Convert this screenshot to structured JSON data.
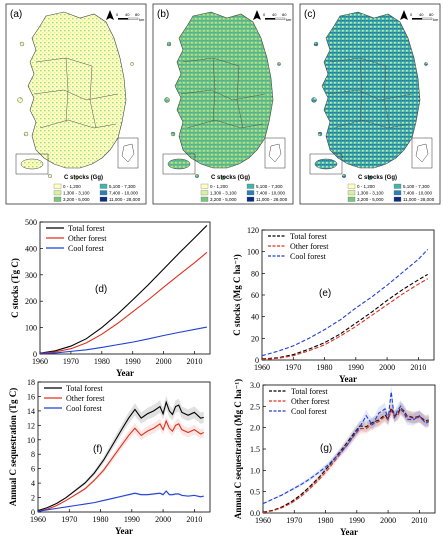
{
  "map_panels": [
    {
      "label": "(a)",
      "palette": "light",
      "legend_title": "C stocks (Gg)",
      "classes": [
        {
          "label": "0 - 1,200",
          "color": "#ffffbf"
        },
        {
          "label": "1,300 - 3,100",
          "color": "#d9f0a3"
        },
        {
          "label": "3,200 - 5,000",
          "color": "#78c679"
        },
        {
          "label": "5,100 - 7,300",
          "color": "#41b6a4"
        },
        {
          "label": "7,400 - 10,000",
          "color": "#2c7fb8"
        },
        {
          "label": "11,000 - 28,000",
          "color": "#0c2c84"
        }
      ],
      "scale_labels": [
        "0",
        "40",
        "80"
      ],
      "scale_unit": "km"
    },
    {
      "label": "(b)",
      "palette": "mid",
      "legend_title": "C stocks (Gg)",
      "classes": [
        {
          "label": "0 - 1,200",
          "color": "#ffffbf"
        },
        {
          "label": "1,300 - 3,100",
          "color": "#d9f0a3"
        },
        {
          "label": "3,200 - 5,000",
          "color": "#78c679"
        },
        {
          "label": "5,100 - 7,300",
          "color": "#41b6a4"
        },
        {
          "label": "7,400 - 10,000",
          "color": "#2c7fb8"
        },
        {
          "label": "11,000 - 28,000",
          "color": "#0c2c84"
        }
      ],
      "scale_labels": [
        "0",
        "40",
        "80"
      ],
      "scale_unit": "km"
    },
    {
      "label": "(c)",
      "palette": "dark",
      "legend_title": "C stocks (Gg)",
      "classes": [
        {
          "label": "0 - 1,200",
          "color": "#ffffbf"
        },
        {
          "label": "1,300 - 3,100",
          "color": "#d9f0a3"
        },
        {
          "label": "3,200 - 5,000",
          "color": "#78c679"
        },
        {
          "label": "5,100 - 7,300",
          "color": "#41b6a4"
        },
        {
          "label": "7,400 - 10,000",
          "color": "#2c7fb8"
        },
        {
          "label": "11,000 - 28,000",
          "color": "#0c2c84"
        }
      ],
      "scale_labels": [
        "0",
        "40",
        "80"
      ],
      "scale_unit": "km"
    }
  ],
  "chart_data": [
    {
      "id": "d",
      "label": "(d)",
      "type": "line",
      "xlabel": "Year",
      "ylabel": "C stocks (Tg C)",
      "xlim": [
        1960,
        2015
      ],
      "ylim": [
        0,
        500
      ],
      "xticks": [
        1960,
        1970,
        1980,
        1990,
        2000,
        2010
      ],
      "yticks": [
        0,
        100,
        200,
        300,
        400,
        500
      ],
      "legend_position": "top-left",
      "series": [
        {
          "name": "Total forest",
          "color": "#000000",
          "dash": "solid",
          "x": [
            1960,
            1965,
            1970,
            1975,
            1980,
            1985,
            1990,
            1995,
            2000,
            2005,
            2010,
            2014
          ],
          "y": [
            3,
            12,
            30,
            58,
            100,
            150,
            205,
            262,
            322,
            382,
            440,
            487
          ]
        },
        {
          "name": "Other forest",
          "color": "#e0301e",
          "dash": "solid",
          "x": [
            1960,
            1965,
            1970,
            1975,
            1980,
            1985,
            1990,
            1995,
            2000,
            2005,
            2010,
            2014
          ],
          "y": [
            2,
            8,
            20,
            42,
            75,
            115,
            160,
            205,
            253,
            300,
            346,
            385
          ]
        },
        {
          "name": "Cool forest",
          "color": "#1f3fd6",
          "dash": "solid",
          "x": [
            1960,
            1965,
            1970,
            1975,
            1980,
            1985,
            1990,
            1995,
            2000,
            2005,
            2010,
            2014
          ],
          "y": [
            1,
            4,
            10,
            16,
            25,
            35,
            45,
            57,
            70,
            82,
            93,
            102
          ]
        }
      ]
    },
    {
      "id": "e",
      "label": "(e)",
      "type": "line",
      "xlabel": "Year",
      "ylabel": "C stocks (Mg C ha⁻¹)",
      "xlim": [
        1960,
        2015
      ],
      "ylim": [
        0,
        120
      ],
      "xticks": [
        1960,
        1970,
        1980,
        1990,
        2000,
        2010
      ],
      "yticks": [
        0,
        20,
        40,
        60,
        80,
        100,
        120
      ],
      "legend_position": "top-left",
      "series": [
        {
          "name": "Total forest",
          "color": "#000000",
          "dash": "dashed",
          "x": [
            1960,
            1965,
            1970,
            1975,
            1980,
            1985,
            1990,
            1995,
            2000,
            2005,
            2010,
            2013
          ],
          "y": [
            1,
            2,
            5,
            10,
            16,
            24,
            34,
            44,
            55,
            65,
            74,
            79
          ]
        },
        {
          "name": "Other forest",
          "color": "#e0301e",
          "dash": "dashed",
          "x": [
            1960,
            1965,
            1970,
            1975,
            1980,
            1985,
            1990,
            1995,
            2000,
            2005,
            2010,
            2013
          ],
          "y": [
            0.5,
            1.5,
            4,
            8.5,
            14,
            22,
            31,
            41,
            51,
            61,
            70,
            75
          ]
        },
        {
          "name": "Cool forest",
          "color": "#1f3fd6",
          "dash": "dashed",
          "x": [
            1960,
            1965,
            1970,
            1975,
            1980,
            1985,
            1990,
            1995,
            2000,
            2005,
            2010,
            2013
          ],
          "y": [
            4,
            8,
            13,
            20,
            28,
            37,
            48,
            58,
            69,
            81,
            93,
            102
          ]
        }
      ]
    },
    {
      "id": "f",
      "label": "(f)",
      "type": "line",
      "xlabel": "Year",
      "ylabel": "Annual C sequestration (Tg C)",
      "xlim": [
        1960,
        2015
      ],
      "ylim": [
        0,
        18
      ],
      "xticks": [
        1960,
        1970,
        1980,
        1990,
        2000,
        2010
      ],
      "yticks": [
        0,
        2,
        4,
        6,
        8,
        10,
        12,
        14,
        16,
        18
      ],
      "legend_position": "top-left",
      "series": [
        {
          "name": "Total forest",
          "color": "#000000",
          "dash": "solid",
          "x": [
            1960,
            1963,
            1966,
            1969,
            1972,
            1975,
            1978,
            1981,
            1984,
            1987,
            1989,
            1991,
            1993,
            1995,
            1997,
            1999,
            2000,
            2001,
            2002,
            2003,
            2004,
            2005,
            2006,
            2008,
            2010,
            2012,
            2013
          ],
          "y": [
            0.2,
            0.6,
            1.2,
            2.0,
            3.0,
            4.0,
            5.4,
            7.2,
            9.4,
            11.6,
            13.0,
            14.2,
            13.0,
            13.6,
            14.0,
            14.6,
            13.6,
            15.2,
            14.0,
            13.5,
            14.6,
            14.8,
            13.8,
            13.4,
            13.8,
            13.0,
            13.1
          ]
        },
        {
          "name": "Other forest",
          "color": "#e0301e",
          "dash": "solid",
          "x": [
            1960,
            1963,
            1966,
            1969,
            1972,
            1975,
            1978,
            1981,
            1984,
            1987,
            1989,
            1991,
            1993,
            1995,
            1997,
            1999,
            2000,
            2001,
            2002,
            2003,
            2004,
            2005,
            2006,
            2008,
            2010,
            2012,
            2013
          ],
          "y": [
            0.1,
            0.4,
            0.9,
            1.6,
            2.4,
            3.2,
            4.4,
            5.8,
            7.6,
            9.4,
            10.6,
            11.6,
            10.6,
            11.2,
            11.6,
            12.2,
            11.4,
            12.6,
            11.6,
            11.2,
            12.0,
            12.2,
            11.4,
            11.0,
            11.4,
            10.8,
            11.0
          ]
        },
        {
          "name": "Cool forest",
          "color": "#1f3fd6",
          "dash": "solid",
          "x": [
            1960,
            1963,
            1966,
            1969,
            1972,
            1975,
            1978,
            1981,
            1984,
            1987,
            1989,
            1991,
            1993,
            1995,
            1997,
            1999,
            2000,
            2001,
            2002,
            2003,
            2004,
            2005,
            2006,
            2008,
            2010,
            2012,
            2013
          ],
          "y": [
            0.1,
            0.3,
            0.5,
            0.7,
            0.9,
            1.1,
            1.3,
            1.6,
            1.9,
            2.2,
            2.4,
            2.6,
            2.4,
            2.4,
            2.5,
            2.6,
            2.4,
            2.9,
            2.4,
            2.4,
            2.5,
            2.5,
            2.3,
            2.2,
            2.3,
            2.1,
            2.2
          ]
        }
      ]
    },
    {
      "id": "g",
      "label": "(g)",
      "type": "line",
      "xlabel": "Year",
      "ylabel": "Annual C sequestration (Mg C ha⁻¹)",
      "xlim": [
        1960,
        2015
      ],
      "ylim": [
        0,
        3.0
      ],
      "xticks": [
        1960,
        1970,
        1980,
        1990,
        2000,
        2010
      ],
      "yticks": [
        0.0,
        0.5,
        1.0,
        1.5,
        2.0,
        2.5,
        3.0
      ],
      "legend_position": "top-left",
      "series": [
        {
          "name": "Total forest",
          "color": "#000000",
          "dash": "dashed",
          "x": [
            1960,
            1963,
            1966,
            1969,
            1972,
            1975,
            1978,
            1981,
            1984,
            1987,
            1989,
            1991,
            1993,
            1995,
            1997,
            1999,
            2000,
            2001,
            2002,
            2003,
            2004,
            2005,
            2006,
            2008,
            2010,
            2012,
            2013
          ],
          "y": [
            0.02,
            0.06,
            0.14,
            0.26,
            0.42,
            0.62,
            0.84,
            1.1,
            1.38,
            1.66,
            1.86,
            2.04,
            2.02,
            2.12,
            2.18,
            2.3,
            2.2,
            2.46,
            2.28,
            2.32,
            2.46,
            2.4,
            2.28,
            2.24,
            2.26,
            2.16,
            2.18
          ]
        },
        {
          "name": "Other forest",
          "color": "#e0301e",
          "dash": "dashed",
          "x": [
            1960,
            1963,
            1966,
            1969,
            1972,
            1975,
            1978,
            1981,
            1984,
            1987,
            1989,
            1991,
            1993,
            1995,
            1997,
            1999,
            2000,
            2001,
            2002,
            2003,
            2004,
            2005,
            2006,
            2008,
            2010,
            2012,
            2013
          ],
          "y": [
            0.01,
            0.05,
            0.12,
            0.23,
            0.38,
            0.57,
            0.79,
            1.04,
            1.32,
            1.6,
            1.8,
            1.98,
            1.98,
            2.08,
            2.14,
            2.26,
            2.18,
            2.4,
            2.26,
            2.28,
            2.42,
            2.36,
            2.26,
            2.22,
            2.24,
            2.14,
            2.16
          ]
        },
        {
          "name": "Cool forest",
          "color": "#1f3fd6",
          "dash": "dashed",
          "x": [
            1960,
            1963,
            1966,
            1969,
            1972,
            1975,
            1978,
            1981,
            1984,
            1987,
            1989,
            1991,
            1993,
            1995,
            1997,
            1999,
            2000,
            2001,
            2002,
            2003,
            2004,
            2005,
            2006,
            2008,
            2010,
            2012,
            2013
          ],
          "y": [
            0.22,
            0.32,
            0.42,
            0.54,
            0.66,
            0.8,
            0.96,
            1.14,
            1.36,
            1.6,
            1.82,
            2.02,
            2.28,
            2.06,
            2.34,
            2.44,
            2.2,
            2.84,
            2.22,
            2.4,
            2.5,
            2.36,
            2.2,
            2.18,
            2.28,
            2.1,
            2.14
          ]
        }
      ]
    }
  ]
}
